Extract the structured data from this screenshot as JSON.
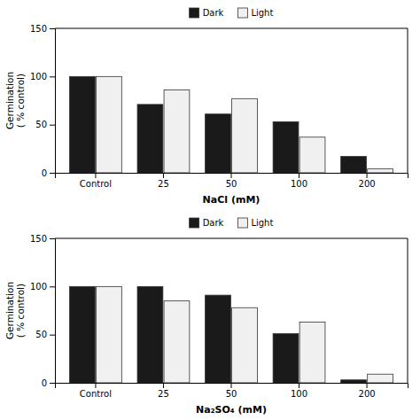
{
  "chart_data": [
    {
      "type": "bar",
      "categories": [
        "Control",
        "25",
        "50",
        "100",
        "200"
      ],
      "series": [
        {
          "name": "Dark",
          "color": "#1a1a1a",
          "values": [
            100,
            71,
            61,
            53,
            17
          ]
        },
        {
          "name": "Light",
          "color": "#f0f0f0",
          "values": [
            100,
            86,
            77,
            37,
            4
          ]
        }
      ],
      "xlabel": "NaCl (mM)",
      "ylabel": "Germination\n( % control)",
      "ylim": [
        0,
        150
      ],
      "yticks": [
        0,
        50,
        100,
        150
      ],
      "grid": false,
      "legend": "top"
    },
    {
      "type": "bar",
      "categories": [
        "Control",
        "25",
        "50",
        "100",
        "200"
      ],
      "series": [
        {
          "name": "Dark",
          "color": "#1a1a1a",
          "values": [
            100,
            100,
            91,
            51,
            3
          ]
        },
        {
          "name": "Light",
          "color": "#f0f0f0",
          "values": [
            100,
            85,
            78,
            63,
            9
          ]
        }
      ],
      "xlabel": "Na₂SO₄ (mM)",
      "ylabel": "Germination\n( % control)",
      "ylim": [
        0,
        150
      ],
      "yticks": [
        0,
        50,
        100,
        150
      ],
      "grid": false,
      "legend": "top"
    }
  ]
}
